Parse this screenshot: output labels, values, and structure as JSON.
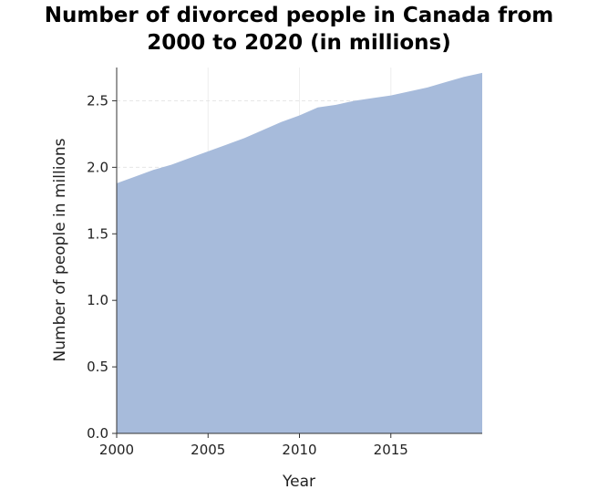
{
  "chart_data": {
    "type": "area",
    "title": [
      "Number of divorced people in Canada from",
      "2000 to 2020 (in millions)"
    ],
    "xlabel": "Year",
    "ylabel": "Number of people in millions",
    "xlim": [
      2000,
      2020
    ],
    "ylim": [
      0,
      2.75
    ],
    "x_ticks": [
      2000,
      2005,
      2010,
      2015
    ],
    "y_ticks": [
      0.0,
      0.5,
      1.0,
      1.5,
      2.0,
      2.5
    ],
    "grid": true,
    "series": [
      {
        "x": [
          2000,
          2001,
          2002,
          2003,
          2004,
          2005,
          2006,
          2007,
          2008,
          2009,
          2010,
          2011,
          2012,
          2013,
          2014,
          2015,
          2016,
          2017,
          2018,
          2019,
          2020
        ],
        "values": [
          1.88,
          1.93,
          1.98,
          2.02,
          2.07,
          2.12,
          2.17,
          2.22,
          2.28,
          2.34,
          2.39,
          2.45,
          2.47,
          2.5,
          2.52,
          2.54,
          2.57,
          2.6,
          2.64,
          2.68,
          2.71
        ],
        "color": "#a7bbdb"
      }
    ]
  }
}
